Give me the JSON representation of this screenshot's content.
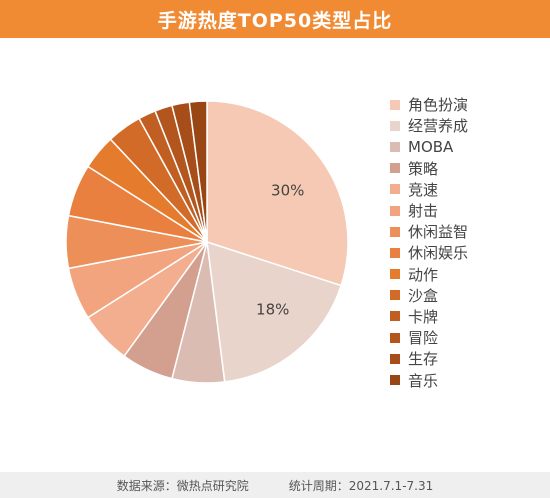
{
  "title": "手游热度TOP50类型占比",
  "footer": {
    "source": "数据来源：微热点研究院",
    "period": "统计周期：2021.7.1-7.31"
  },
  "chart_data": {
    "type": "pie",
    "title": "手游热度TOP50类型占比",
    "legend_position": "right",
    "start_angle": "12 o'clock",
    "direction": "clockwise",
    "slices": [
      {
        "label": "角色扮演",
        "value": 30,
        "color": "#f5c9b3",
        "data_label": "30%"
      },
      {
        "label": "经营养成",
        "value": 18,
        "color": "#e9d4cc",
        "data_label": "18%"
      },
      {
        "label": "MOBA",
        "value": 6,
        "color": "#dbbcb2"
      },
      {
        "label": "策略",
        "value": 6,
        "color": "#d39f8f"
      },
      {
        "label": "竞速",
        "value": 6,
        "color": "#f3ae90"
      },
      {
        "label": "射击",
        "value": 6,
        "color": "#f2a47f"
      },
      {
        "label": "休闲益智",
        "value": 6,
        "color": "#ed8f58"
      },
      {
        "label": "休闲娱乐",
        "value": 6,
        "color": "#ea8040"
      },
      {
        "label": "动作",
        "value": 4,
        "color": "#e57b2d"
      },
      {
        "label": "沙盒",
        "value": 4,
        "color": "#d26a28"
      },
      {
        "label": "卡牌",
        "value": 2,
        "color": "#c15f23"
      },
      {
        "label": "冒险",
        "value": 2,
        "color": "#b2561e"
      },
      {
        "label": "生存",
        "value": 2,
        "color": "#a64d1a"
      },
      {
        "label": "音乐",
        "value": 2,
        "color": "#994615"
      }
    ]
  }
}
